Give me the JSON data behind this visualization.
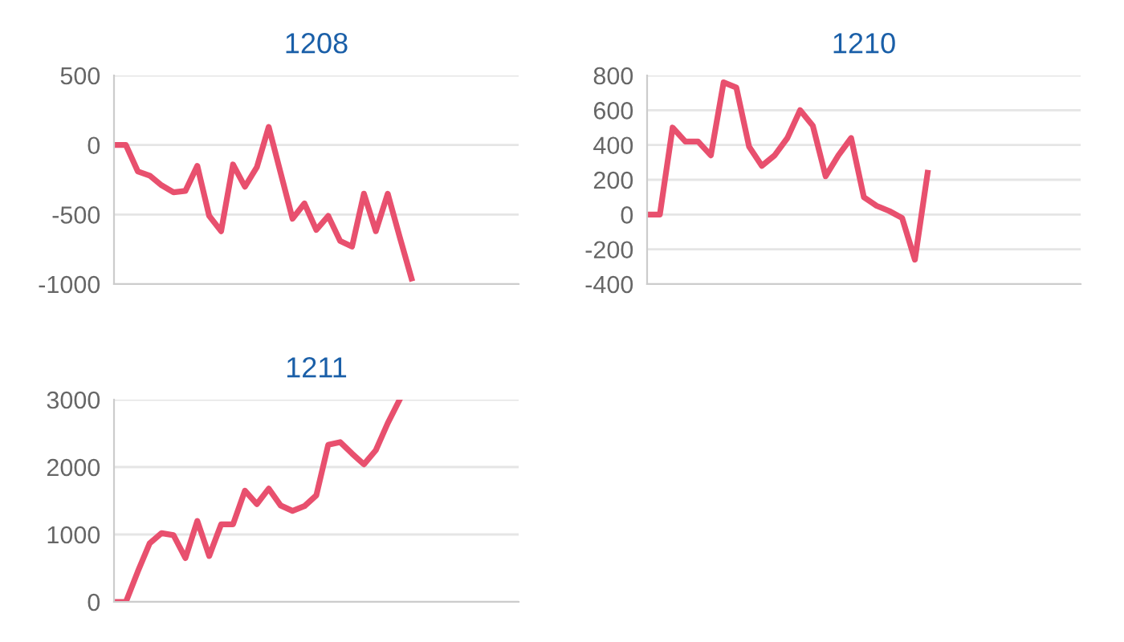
{
  "chart_data": [
    {
      "type": "line",
      "title": "1208",
      "categories": [
        null,
        null,
        null,
        null,
        null,
        null,
        null,
        null,
        null,
        null,
        null,
        null,
        null,
        null,
        null,
        null,
        null,
        null,
        null,
        null,
        null,
        null,
        null,
        null,
        null,
        null,
        null,
        null,
        null,
        null,
        null,
        null,
        null,
        null,
        null
      ],
      "series": [
        {
          "color": "#e8506e",
          "values": [
            0,
            0,
            -190,
            -220,
            -290,
            -340,
            -330,
            -150,
            -510,
            -620,
            -140,
            -300,
            -160,
            130,
            -200,
            -530,
            -420,
            -610,
            -510,
            -690,
            -730,
            -350,
            -620,
            -350,
            -660,
            -960,
            null,
            null,
            null,
            null,
            null,
            null,
            null,
            null,
            null
          ]
        }
      ],
      "ylim": [
        -1000,
        500
      ],
      "yticks": [
        -1000,
        -500,
        0,
        500
      ],
      "grid": "y",
      "tick_labels": "y",
      "marker": "none",
      "line_style": "solid"
    },
    {
      "type": "line",
      "title": "1210",
      "categories": [
        null,
        null,
        null,
        null,
        null,
        null,
        null,
        null,
        null,
        null,
        null,
        null,
        null,
        null,
        null,
        null,
        null,
        null,
        null,
        null,
        null,
        null,
        null,
        null,
        null,
        null,
        null,
        null,
        null,
        null,
        null,
        null,
        null,
        null,
        null
      ],
      "series": [
        {
          "color": "#e8506e",
          "values": [
            0,
            0,
            500,
            420,
            420,
            340,
            760,
            730,
            390,
            280,
            340,
            440,
            600,
            510,
            220,
            340,
            440,
            100,
            50,
            20,
            -20,
            -260,
            240,
            null,
            null,
            null,
            null,
            null,
            null,
            null,
            null,
            null,
            null,
            null,
            null
          ]
        }
      ],
      "ylim": [
        -400,
        800
      ],
      "yticks": [
        -400,
        -200,
        0,
        200,
        400,
        600,
        800
      ],
      "grid": "y",
      "tick_labels": "y",
      "marker": "none",
      "line_style": "solid"
    },
    {
      "type": "line",
      "title": "1211",
      "categories": [
        null,
        null,
        null,
        null,
        null,
        null,
        null,
        null,
        null,
        null,
        null,
        null,
        null,
        null,
        null,
        null,
        null,
        null,
        null,
        null,
        null,
        null,
        null,
        null,
        null,
        null,
        null,
        null,
        null,
        null,
        null,
        null,
        null,
        null,
        null
      ],
      "series": [
        {
          "color": "#e8506e",
          "values": [
            0,
            0,
            450,
            870,
            1020,
            990,
            650,
            1200,
            680,
            1150,
            1150,
            1650,
            1450,
            1680,
            1430,
            1350,
            1420,
            1580,
            2330,
            2370,
            2200,
            2040,
            2250,
            2650,
            3000,
            null,
            null,
            null,
            null,
            null,
            null,
            null,
            null,
            null,
            null
          ]
        }
      ],
      "ylim": [
        0,
        3000
      ],
      "yticks": [
        0,
        1000,
        2000,
        3000
      ],
      "grid": "y",
      "tick_labels": "y",
      "marker": "none",
      "line_style": "solid"
    }
  ]
}
